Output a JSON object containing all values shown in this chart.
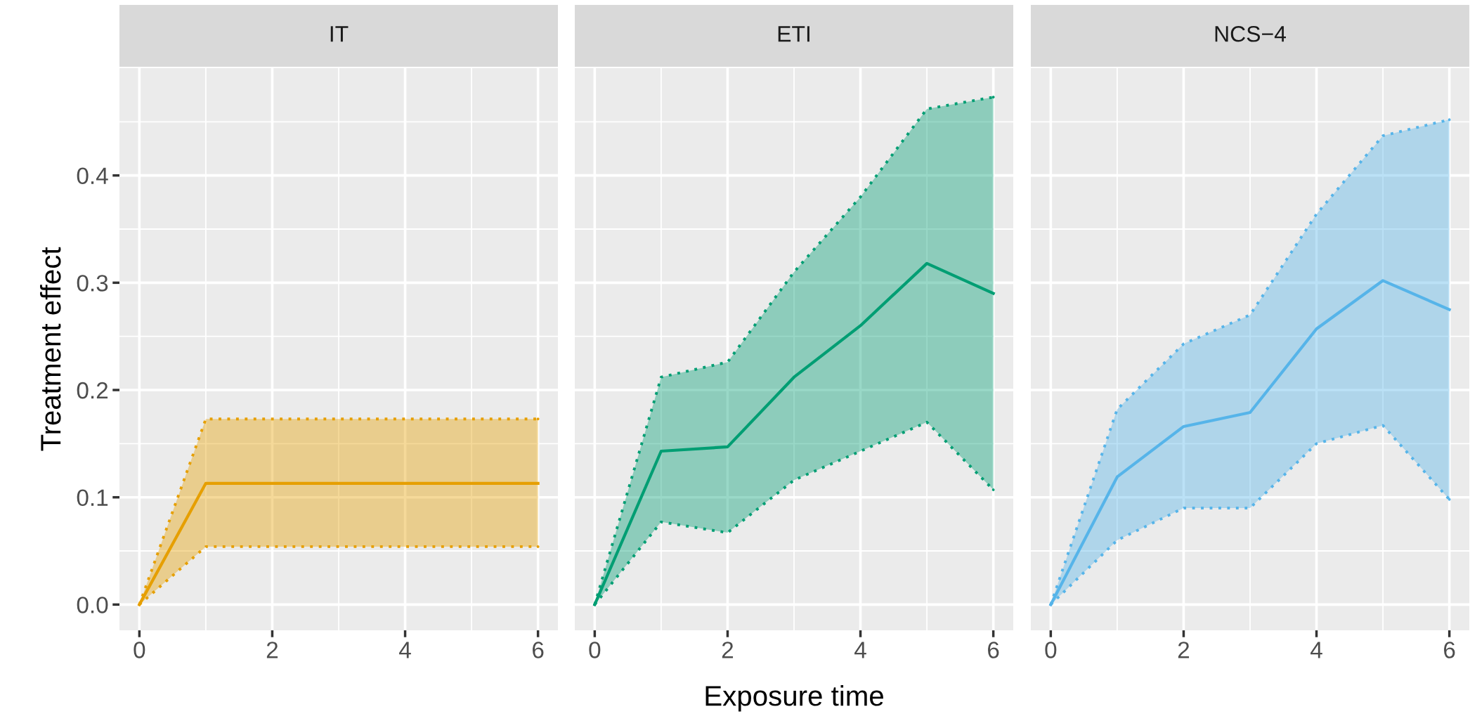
{
  "chart_data": [
    {
      "type": "line",
      "title": "IT",
      "ylabel": "Treatment effect",
      "x": [
        0,
        1,
        2,
        3,
        4,
        5,
        6
      ],
      "xlim": [
        -0.3,
        6.3
      ],
      "xticks": [
        0,
        2,
        4,
        6
      ],
      "ylim": [
        -0.024,
        0.5
      ],
      "yticks": [
        {
          "value": 0,
          "label": "0.0"
        },
        0.1,
        0.2,
        0.3,
        0.4
      ],
      "grid": true,
      "line_style": "solid",
      "series": [
        {
          "color": "#e69f00",
          "values": [
            0,
            0.113,
            0.113,
            0.113,
            0.113,
            0.113,
            0.113
          ],
          "lower": [
            0,
            0.054,
            0.054,
            0.054,
            0.054,
            0.054,
            0.054
          ],
          "upper": [
            0,
            0.173,
            0.173,
            0.173,
            0.173,
            0.173,
            0.173
          ]
        },
        {
          "color": "#e69f00",
          "line_style": "dotted",
          "values": [
            0,
            0.054,
            0.054,
            0.054,
            0.054,
            0.054,
            0.054
          ]
        },
        {
          "color": "#e69f00",
          "line_style": "dotted",
          "values": [
            0,
            0.173,
            0.173,
            0.173,
            0.173,
            0.173,
            0.173
          ]
        }
      ]
    },
    {
      "type": "line",
      "title": "ETI",
      "xlabel": "Exposure time",
      "x": [
        0,
        1,
        2,
        3,
        4,
        5,
        6
      ],
      "xlim": [
        -0.3,
        6.3
      ],
      "xticks": [
        0,
        2,
        4,
        6
      ],
      "ylim": [
        -0.024,
        0.5
      ],
      "yticks": [
        0,
        0.1,
        0.2,
        0.3,
        0.4
      ],
      "grid": true,
      "line_style": "solid",
      "tick_labels": "x",
      "series": [
        {
          "color": "#009e73",
          "values": [
            0,
            0.143,
            0.147,
            0.212,
            0.26,
            0.318,
            0.29
          ],
          "lower": [
            0,
            0.077,
            0.067,
            0.116,
            0.143,
            0.17,
            0.107
          ],
          "upper": [
            0,
            0.212,
            0.226,
            0.31,
            0.38,
            0.462,
            0.473
          ]
        },
        {
          "color": "#009e73",
          "line_style": "dotted",
          "values": [
            0,
            0.077,
            0.067,
            0.116,
            0.143,
            0.17,
            0.107
          ]
        },
        {
          "color": "#009e73",
          "line_style": "dotted",
          "values": [
            0,
            0.212,
            0.226,
            0.31,
            0.38,
            0.462,
            0.473
          ]
        }
      ]
    },
    {
      "type": "line",
      "title": "NCS−4",
      "x": [
        0,
        1,
        2,
        3,
        4,
        5,
        6
      ],
      "xlim": [
        -0.3,
        6.3
      ],
      "xticks": [
        0,
        2,
        4,
        6
      ],
      "ylim": [
        -0.024,
        0.5
      ],
      "yticks": [
        0,
        0.1,
        0.2,
        0.3,
        0.4
      ],
      "grid": true,
      "line_style": "solid",
      "tick_labels": "x",
      "series": [
        {
          "color": "#56b4e9",
          "values": [
            0,
            0.119,
            0.166,
            0.179,
            0.257,
            0.302,
            0.275
          ],
          "lower": [
            0,
            0.06,
            0.09,
            0.09,
            0.15,
            0.167,
            0.098
          ],
          "upper": [
            0,
            0.182,
            0.243,
            0.27,
            0.364,
            0.437,
            0.452
          ]
        },
        {
          "color": "#56b4e9",
          "line_style": "dotted",
          "values": [
            0,
            0.06,
            0.09,
            0.09,
            0.15,
            0.167,
            0.098
          ]
        },
        {
          "color": "#56b4e9",
          "line_style": "dotted",
          "values": [
            0,
            0.182,
            0.243,
            0.27,
            0.364,
            0.437,
            0.452
          ]
        }
      ]
    }
  ]
}
